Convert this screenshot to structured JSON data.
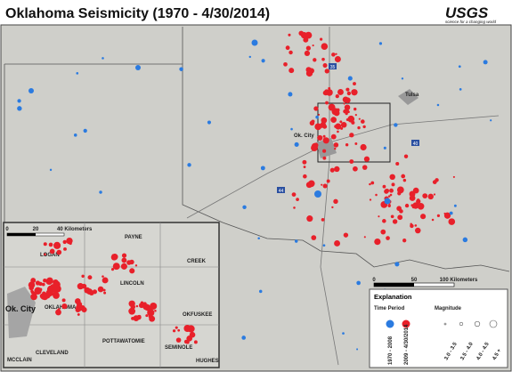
{
  "header": {
    "title": "Oklahoma Seismicity (1970 - 4/30/2014)",
    "logo": "USGS",
    "tagline": "science for a changing world"
  },
  "map": {
    "cities": [
      "Tulsa",
      "Ok. City"
    ],
    "highways": [
      "35",
      "40",
      "44"
    ],
    "scale": [
      "0",
      "50",
      "100 Kilometers"
    ]
  },
  "inset": {
    "scale": [
      "0",
      "20",
      "40 Kilometers"
    ],
    "city": "Ok. City",
    "counties": [
      "PAYNE",
      "LOGAN",
      "CREEK",
      "LINCOLN",
      "OKLAHOMA",
      "OKFUSKEE",
      "POTTAWATOMIE",
      "SEMINOLE",
      "CLEVELAND",
      "MCCLAIN",
      "HUGHES"
    ]
  },
  "legend": {
    "title": "Explanation",
    "time_heading": "Time Period",
    "magnitude_heading": "Magnitude",
    "periods": [
      "1970 - 2008",
      "2009 - 4/30/2014"
    ],
    "magnitudes": [
      "3.0 - 3.5",
      "3.5 - 4.0",
      "4.0 - 4.5",
      "4.5 +"
    ]
  }
}
